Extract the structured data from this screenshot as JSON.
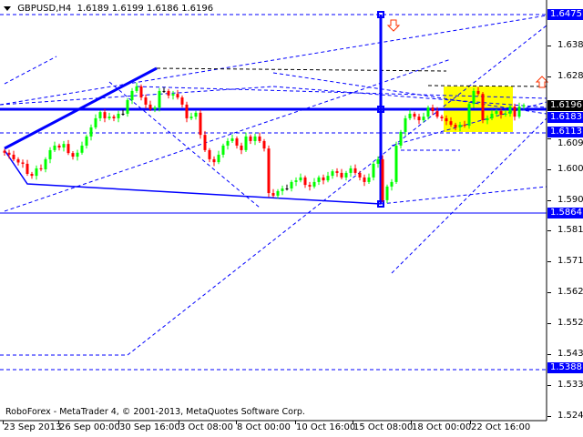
{
  "header": {
    "symbol": "GBPUSD,H4",
    "ohlc": "1.6189 1.6199 1.6186 1.6196"
  },
  "footer": "RoboForex - MetaTrader 4, © 2001-2013, MetaQuotes Software Corp.",
  "colors": {
    "bull": "#00ff00",
    "bear": "#ff0000",
    "lines": "#0000ff",
    "zone": "#ffff00",
    "tag": "#0000ff",
    "current": "#000000"
  },
  "chart_data": {
    "type": "candlestick",
    "title": "GBPUSD,H4",
    "ylim": [
      1.5215,
      1.652
    ],
    "y_ticks": [
      "1.6380",
      "1.6285",
      "1.6095",
      "1.6000",
      "1.5905",
      "1.5810",
      "1.5715",
      "1.5620",
      "1.5525",
      "1.5430",
      "1.5335",
      "1.5240"
    ],
    "x_ticks": [
      "23 Sep 2013",
      "26 Sep 00:00",
      "30 Sep 16:00",
      "3 Oct 08:00",
      "8 Oct 00:00",
      "10 Oct 16:00",
      "15 Oct 08:00",
      "18 Oct 00:00",
      "22 Oct 16:00"
    ],
    "price_tags": [
      {
        "value": "1.6475",
        "style": "level"
      },
      {
        "value": "1.6183",
        "style": "level"
      },
      {
        "value": "1.6113",
        "style": "level"
      },
      {
        "value": "1.5864",
        "style": "level"
      },
      {
        "value": "1.5388",
        "style": "level"
      },
      {
        "value": "1.6196",
        "style": "current"
      }
    ],
    "closes": [
      1.605,
      1.6044,
      1.603,
      1.602,
      1.6016,
      1.5985,
      1.5979,
      1.6002,
      1.5999,
      1.603,
      1.6058,
      1.6072,
      1.6066,
      1.6077,
      1.6049,
      1.6038,
      1.605,
      1.6072,
      1.61,
      1.6128,
      1.6156,
      1.6175,
      1.6156,
      1.6161,
      1.6156,
      1.617,
      1.617,
      1.6212,
      1.624,
      1.6254,
      1.622,
      1.6198,
      1.6184,
      1.6189,
      1.624,
      1.624,
      1.6226,
      1.6231,
      1.622,
      1.6198,
      1.6156,
      1.6161,
      1.6173,
      1.6105,
      1.6058,
      1.603,
      1.6021,
      1.6044,
      1.6072,
      1.6086,
      1.6094,
      1.6072,
      1.6058,
      1.61,
      1.6086,
      1.61,
      1.6086,
      1.6063,
      1.5926,
      1.5918,
      1.5932,
      1.594,
      1.594,
      1.596,
      1.5965,
      1.5974,
      1.5951,
      1.5946,
      1.596,
      1.5974,
      1.5965,
      1.5979,
      1.5993,
      1.5988,
      1.5974,
      1.5988,
      1.6002,
      1.5988,
      1.5974,
      1.596,
      1.5974,
      1.6016,
      1.603,
      1.5904,
      1.5946,
      1.596,
      1.6072,
      1.6114,
      1.6156,
      1.617,
      1.6161,
      1.615,
      1.6161,
      1.6189,
      1.6178,
      1.6161,
      1.6156,
      1.6147,
      1.6136,
      1.6128,
      1.6136,
      1.6133,
      1.62,
      1.624,
      1.6231,
      1.615,
      1.6156,
      1.617,
      1.6178,
      1.6167,
      1.617,
      1.6192,
      1.6161,
      1.6192,
      1.6196
    ]
  }
}
